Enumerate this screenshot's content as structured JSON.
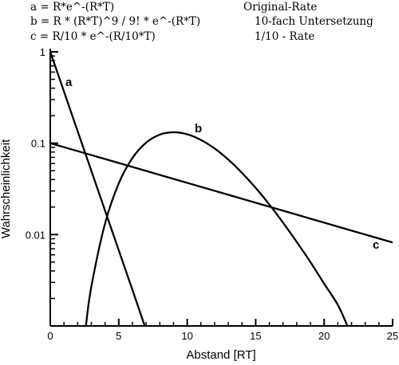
{
  "chart_data": {
    "type": "line",
    "xlabel": "Abstand [RT]",
    "ylabel": "Wahrscheinlichkeit",
    "xlim": [
      0,
      25
    ],
    "ylim": [
      0.001,
      1
    ],
    "y_scale": "log",
    "grid": false,
    "x_ticks": [
      0,
      5,
      10,
      15,
      20,
      25
    ],
    "x_tick_labels": [
      "0",
      "5",
      "10",
      "15",
      "20",
      "25"
    ],
    "y_ticks": [
      1,
      0.1,
      0.01
    ],
    "y_tick_labels": [
      "1",
      "0.1",
      "0.01"
    ],
    "legend": [
      {
        "formula": "a = R*e^-(R*T)",
        "description": "Original-Rate"
      },
      {
        "formula": "b = R * (R*T)^9 / 9! * e^-(R*T)",
        "description": "10-fach Untersetzung"
      },
      {
        "formula": "c = R/10 * e^-(R/10*T)",
        "description": "1/10 - Rate"
      }
    ],
    "series": [
      {
        "name": "a",
        "x": [
          0,
          1,
          2,
          3,
          4,
          5,
          6,
          6.9
        ],
        "y": [
          1,
          0.368,
          0.135,
          0.0498,
          0.0183,
          0.00674,
          0.00248,
          0.001
        ]
      },
      {
        "name": "b",
        "x": [
          2.6,
          3,
          4,
          5,
          6,
          7,
          8,
          9,
          10,
          11,
          12,
          13,
          14,
          15,
          16,
          17,
          18,
          19,
          20,
          21,
          21.7
        ],
        "y": [
          0.001,
          0.0027,
          0.0132,
          0.0363,
          0.0688,
          0.1014,
          0.1241,
          0.1318,
          0.1251,
          0.1085,
          0.0874,
          0.0661,
          0.0473,
          0.0324,
          0.0213,
          0.0135,
          0.0083,
          0.005,
          0.0029,
          0.0017,
          0.001
        ]
      },
      {
        "name": "c",
        "x": [
          0,
          5,
          10,
          15,
          20,
          25
        ],
        "y": [
          0.1,
          0.0607,
          0.0368,
          0.0223,
          0.0135,
          0.0082
        ]
      }
    ],
    "curve_labels": [
      {
        "name": "a",
        "text": "a"
      },
      {
        "name": "b",
        "text": "b"
      },
      {
        "name": "c",
        "text": "c"
      }
    ]
  }
}
